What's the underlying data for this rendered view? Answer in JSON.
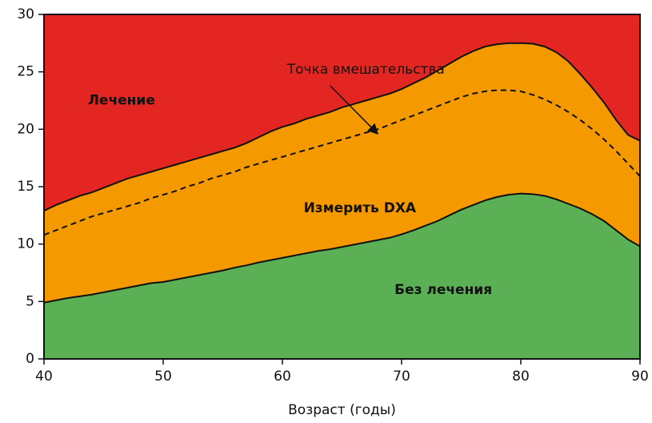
{
  "chart_data": {
    "type": "area",
    "xlabel": "Возраст (годы)",
    "ylabel": "",
    "xlim": [
      40,
      90
    ],
    "ylim": [
      0,
      30
    ],
    "xticks": [
      40,
      50,
      60,
      70,
      80,
      90
    ],
    "yticks": [
      0,
      5,
      10,
      15,
      20,
      25,
      30
    ],
    "grid": false,
    "x": [
      40,
      41,
      42,
      43,
      44,
      45,
      46,
      47,
      48,
      49,
      50,
      51,
      52,
      53,
      54,
      55,
      56,
      57,
      58,
      59,
      60,
      61,
      62,
      63,
      64,
      65,
      66,
      67,
      68,
      69,
      70,
      71,
      72,
      73,
      74,
      75,
      76,
      77,
      78,
      79,
      80,
      81,
      82,
      83,
      84,
      85,
      86,
      87,
      88,
      89,
      90
    ],
    "series": [
      {
        "name": "Без лечения",
        "color": "#5bb055",
        "values": [
          4.9,
          5.1,
          5.3,
          5.45,
          5.6,
          5.8,
          6.0,
          6.2,
          6.4,
          6.6,
          6.7,
          6.9,
          7.1,
          7.3,
          7.5,
          7.7,
          7.95,
          8.15,
          8.4,
          8.6,
          8.8,
          9.0,
          9.2,
          9.4,
          9.55,
          9.75,
          9.95,
          10.15,
          10.35,
          10.55,
          10.85,
          11.2,
          11.6,
          12.0,
          12.5,
          13.0,
          13.4,
          13.8,
          14.1,
          14.3,
          14.4,
          14.35,
          14.2,
          13.9,
          13.5,
          13.1,
          12.6,
          12.0,
          11.2,
          10.4,
          9.8
        ]
      },
      {
        "name": "Измерить DXA",
        "color": "#f49a00",
        "values": [
          12.9,
          13.4,
          13.8,
          14.2,
          14.5,
          14.9,
          15.3,
          15.7,
          16.0,
          16.3,
          16.6,
          16.9,
          17.2,
          17.5,
          17.8,
          18.1,
          18.4,
          18.8,
          19.3,
          19.8,
          20.2,
          20.5,
          20.9,
          21.2,
          21.5,
          21.9,
          22.2,
          22.5,
          22.8,
          23.1,
          23.5,
          24.0,
          24.5,
          25.1,
          25.7,
          26.3,
          26.8,
          27.2,
          27.4,
          27.5,
          27.5,
          27.45,
          27.2,
          26.7,
          25.9,
          24.8,
          23.6,
          22.3,
          20.8,
          19.5,
          19.0
        ]
      },
      {
        "name": "Лечение",
        "color": "#e42623",
        "values": [
          30,
          30,
          30,
          30,
          30,
          30,
          30,
          30,
          30,
          30,
          30,
          30,
          30,
          30,
          30,
          30,
          30,
          30,
          30,
          30,
          30,
          30,
          30,
          30,
          30,
          30,
          30,
          30,
          30,
          30,
          30,
          30,
          30,
          30,
          30,
          30,
          30,
          30,
          30,
          30,
          30,
          30,
          30,
          30,
          30,
          30,
          30,
          30,
          30,
          30,
          30
        ]
      },
      {
        "name": "Точка вмешательства",
        "style": "dashed",
        "values": [
          10.8,
          11.2,
          11.6,
          12.0,
          12.4,
          12.7,
          13.0,
          13.3,
          13.6,
          14.0,
          14.3,
          14.6,
          15.0,
          15.3,
          15.7,
          16.0,
          16.3,
          16.7,
          17.0,
          17.3,
          17.6,
          17.9,
          18.2,
          18.5,
          18.8,
          19.1,
          19.4,
          19.7,
          20.0,
          20.4,
          20.8,
          21.2,
          21.6,
          22.0,
          22.4,
          22.8,
          23.1,
          23.3,
          23.4,
          23.4,
          23.3,
          23.0,
          22.6,
          22.1,
          21.5,
          20.8,
          20.0,
          19.1,
          18.1,
          17.0,
          15.9
        ]
      }
    ],
    "region_labels": [
      {
        "text": "Лечение",
        "x": 46.5,
        "y": 22.5
      },
      {
        "text": "Измерить DXA",
        "x": 66.5,
        "y": 13.1
      },
      {
        "text": "Без лечения",
        "x": 73.5,
        "y": 6.0
      }
    ],
    "annotation": {
      "text": "Точка вмешательства",
      "text_x": 67,
      "text_y": 25.2,
      "arrow_from": [
        64,
        23.8
      ],
      "arrow_to": [
        68,
        19.6
      ]
    }
  }
}
